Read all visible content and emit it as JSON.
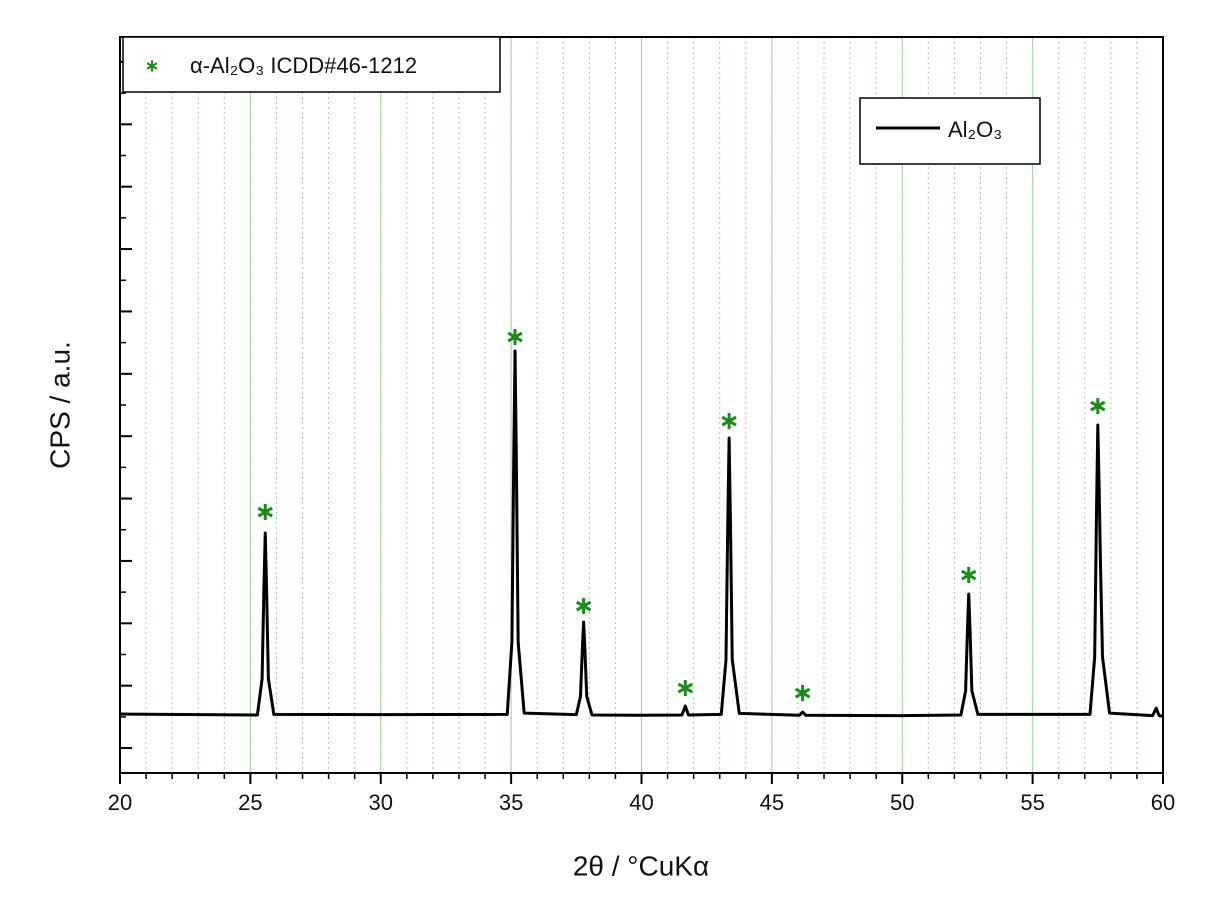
{
  "chart_data": {
    "type": "line",
    "x_label": "2θ / °CuKα",
    "y_label": "CPS / a.u.",
    "xlim": [
      20,
      60
    ],
    "xticks": [
      20,
      25,
      30,
      35,
      40,
      45,
      50,
      55,
      60
    ],
    "x_minor_step": 1,
    "ylim": [
      -400,
      11400
    ],
    "yticks": [
      0,
      1000,
      2000,
      3000,
      4000,
      5000,
      6000,
      7000,
      8000,
      9000,
      10000,
      11000
    ],
    "y_minor_step": 500,
    "grid": true,
    "grid_color": "#9fd49f",
    "series": [
      {
        "name": "Al₂O₃",
        "color": "#000000",
        "kind": "line",
        "x": [
          20,
          25.27,
          25.45,
          25.52,
          25.57,
          25.62,
          25.69,
          25.9,
          30,
          34.85,
          35.03,
          35.1,
          35.15,
          35.2,
          35.27,
          35.5,
          37.5,
          37.66,
          37.73,
          37.78,
          37.83,
          37.9,
          38.1,
          40,
          41.55,
          41.68,
          41.8,
          43.06,
          43.24,
          43.31,
          43.36,
          43.41,
          43.48,
          43.75,
          46.05,
          46.18,
          46.3,
          50,
          52.25,
          52.43,
          52.5,
          52.55,
          52.6,
          52.67,
          52.9,
          57.2,
          57.38,
          57.45,
          57.5,
          57.55,
          57.6,
          57.68,
          57.95,
          59.6,
          59.74,
          59.85,
          60
        ],
        "values": [
          545,
          530,
          1113,
          2572,
          3447,
          2572,
          1113,
          540,
          535,
          540,
          1697,
          4615,
          6365,
          4615,
          1697,
          560,
          535,
          828,
          1573,
          2020,
          1573,
          828,
          530,
          525,
          530,
          673,
          530,
          540,
          1418,
          3638,
          4970,
          3638,
          1418,
          555,
          525,
          577,
          525,
          520,
          530,
          918,
          1887,
          2469,
          1887,
          918,
          540,
          540,
          1460,
          3784,
          5179,
          4200,
          3000,
          1460,
          560,
          520,
          640,
          520,
          510
        ]
      },
      {
        "name": "α-Al₂O₃ ICDD#46-1212",
        "color": "#1a8c1a",
        "kind": "star",
        "x": [
          25.57,
          35.15,
          37.78,
          41.68,
          43.36,
          46.18,
          52.55,
          57.5
        ],
        "values": [
          3784,
          6590,
          2277,
          962,
          5243,
          882,
          2774,
          5483
        ]
      }
    ]
  }
}
